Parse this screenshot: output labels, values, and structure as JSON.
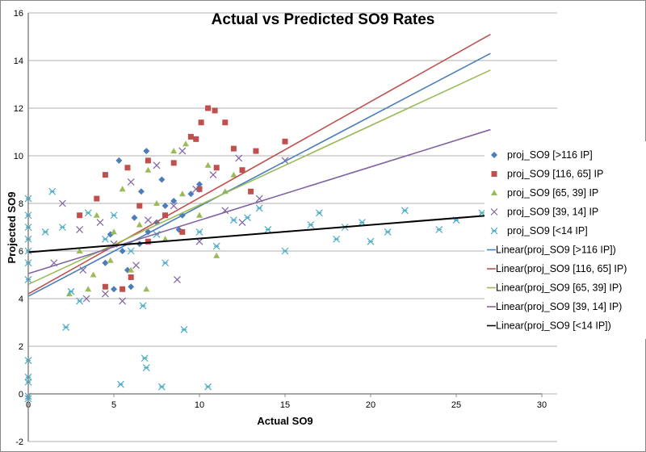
{
  "chart_data": {
    "type": "scatter",
    "title": "Actual vs Predicted SO9 Rates",
    "xlabel": "Actual SO9",
    "ylabel": "Projected SO9",
    "xlim": [
      0,
      30
    ],
    "ylim": [
      -2,
      16
    ],
    "xticks": [
      "0",
      "5",
      "10",
      "15",
      "20",
      "25",
      "30"
    ],
    "yticks": [
      "-2",
      "0",
      "2",
      "4",
      "6",
      "8",
      "10",
      "12",
      "14",
      "16"
    ],
    "grid": "horizontal",
    "legend_position": "right",
    "series": [
      {
        "name": "proj_SO9 [>116 IP]",
        "color": "#4a7ebb",
        "marker": "diamond",
        "points": [
          [
            5.3,
            9.8
          ],
          [
            6.9,
            10.2
          ],
          [
            5,
            4.4
          ],
          [
            6,
            4.5
          ],
          [
            4.5,
            5.5
          ],
          [
            6.5,
            6.3
          ],
          [
            7.5,
            7.2
          ],
          [
            8,
            7.9
          ],
          [
            5.5,
            6
          ],
          [
            7,
            6.8
          ],
          [
            8.5,
            8.1
          ],
          [
            9,
            7.5
          ],
          [
            6.2,
            7.4
          ],
          [
            4.8,
            6.7
          ],
          [
            7.8,
            9
          ],
          [
            9.5,
            8.4
          ],
          [
            10,
            8.8
          ],
          [
            5.8,
            5.2
          ],
          [
            8.8,
            6.9
          ],
          [
            6.6,
            8.5
          ]
        ]
      },
      {
        "name": "proj_SO9 [116, 65] IP",
        "color": "#c0504d",
        "marker": "square",
        "points": [
          [
            10.5,
            12
          ],
          [
            10.9,
            11.9
          ],
          [
            10.1,
            11.4
          ],
          [
            11.5,
            11.4
          ],
          [
            9.8,
            10.7
          ],
          [
            12,
            10.3
          ],
          [
            13.3,
            10.2
          ],
          [
            15,
            10.6
          ],
          [
            4,
            8.2
          ],
          [
            3,
            7.5
          ],
          [
            4.5,
            9.2
          ],
          [
            5.8,
            9.5
          ],
          [
            7,
            9.8
          ],
          [
            8.5,
            9.7
          ],
          [
            4.5,
            4.5
          ],
          [
            6,
            4.9
          ],
          [
            5.5,
            4.4
          ],
          [
            9.5,
            10.8
          ],
          [
            11,
            9.5
          ],
          [
            12.5,
            9.4
          ],
          [
            13,
            8.5
          ],
          [
            8,
            7.5
          ],
          [
            7,
            6.4
          ],
          [
            10,
            8.6
          ],
          [
            6.5,
            7.9
          ],
          [
            9,
            6.8
          ]
        ]
      },
      {
        "name": "proj_SO9 [65, 39] IP",
        "color": "#9bbb59",
        "marker": "triangle",
        "points": [
          [
            2.4,
            4.2
          ],
          [
            3.5,
            4.4
          ],
          [
            6.9,
            4.4
          ],
          [
            9.2,
            10.5
          ],
          [
            8.5,
            10.2
          ],
          [
            7,
            9.4
          ],
          [
            5.5,
            8.6
          ],
          [
            4,
            7.5
          ],
          [
            3,
            6
          ],
          [
            6,
            5.2
          ],
          [
            8,
            6.5
          ],
          [
            10,
            7.5
          ],
          [
            11.5,
            8.5
          ],
          [
            12,
            9.2
          ],
          [
            4.8,
            5.6
          ],
          [
            7.5,
            8
          ],
          [
            9,
            8.4
          ],
          [
            10.5,
            9.6
          ],
          [
            5,
            6.8
          ],
          [
            6.5,
            7.1
          ],
          [
            11,
            5.8
          ],
          [
            3.8,
            5
          ]
        ]
      },
      {
        "name": "proj_SO9 [39, 14] IP",
        "color": "#8064a2",
        "marker": "x",
        "points": [
          [
            2,
            8
          ],
          [
            3.2,
            5.2
          ],
          [
            3.4,
            4
          ],
          [
            4.5,
            4.2
          ],
          [
            5.5,
            3.9
          ],
          [
            8.7,
            4.8
          ],
          [
            10.8,
            9.2
          ],
          [
            12.3,
            9.9
          ],
          [
            13.5,
            8.2
          ],
          [
            15,
            9.8
          ],
          [
            9,
            10.2
          ],
          [
            7.5,
            9.6
          ],
          [
            6,
            8.9
          ],
          [
            4.2,
            7.2
          ],
          [
            1.5,
            5.5
          ],
          [
            5,
            6.3
          ],
          [
            7,
            7.3
          ],
          [
            8.5,
            7.9
          ],
          [
            10,
            6.4
          ],
          [
            11.5,
            7.7
          ],
          [
            3,
            6.9
          ],
          [
            6.3,
            5.4
          ],
          [
            9.8,
            8.6
          ],
          [
            12.5,
            7.2
          ]
        ]
      },
      {
        "name": "proj_SO9 [<14 IP]",
        "color": "#4bacc6",
        "marker": "asterisk",
        "points": [
          [
            0,
            8.2
          ],
          [
            0,
            7.5
          ],
          [
            0,
            7
          ],
          [
            0,
            6.5
          ],
          [
            0,
            6
          ],
          [
            0,
            5.5
          ],
          [
            0,
            4.8
          ],
          [
            0,
            1.4
          ],
          [
            0,
            0.7
          ],
          [
            0,
            0.5
          ],
          [
            0,
            -0.1
          ],
          [
            0,
            -0.2
          ],
          [
            1.4,
            8.5
          ],
          [
            2.2,
            2.8
          ],
          [
            5.4,
            0.4
          ],
          [
            6.8,
            1.5
          ],
          [
            6.9,
            1.1
          ],
          [
            6.7,
            3.7
          ],
          [
            7.8,
            0.3
          ],
          [
            9.1,
            2.7
          ],
          [
            10.5,
            0.3
          ],
          [
            2.5,
            4.3
          ],
          [
            3,
            3.9
          ],
          [
            1,
            6.8
          ],
          [
            2,
            7
          ],
          [
            3.5,
            7.6
          ],
          [
            5,
            7.5
          ],
          [
            6,
            6
          ],
          [
            8,
            5.5
          ],
          [
            10,
            6.8
          ],
          [
            12,
            7.3
          ],
          [
            13.5,
            7.8
          ],
          [
            14,
            6.9
          ],
          [
            15,
            6
          ],
          [
            16.5,
            7.1
          ],
          [
            17,
            7.6
          ],
          [
            18,
            6.5
          ],
          [
            19.5,
            7.2
          ],
          [
            21,
            6.8
          ],
          [
            22,
            7.7
          ],
          [
            24,
            6.9
          ],
          [
            27,
            6.6
          ],
          [
            26.5,
            7.6
          ],
          [
            25,
            7.3
          ],
          [
            20,
            6.4
          ],
          [
            18.5,
            7
          ],
          [
            11,
            6.2
          ],
          [
            12.8,
            7.4
          ],
          [
            4.5,
            6.5
          ],
          [
            7.5,
            6.7
          ]
        ]
      }
    ],
    "trendlines": [
      {
        "name": "Linear(proj_SO9 [>116 IP])",
        "color": "#4a7ebb",
        "x": [
          0,
          27
        ],
        "y": [
          4.1,
          14.3
        ]
      },
      {
        "name": "Linear(proj_SO9 [116, 65] IP)",
        "color": "#c0504d",
        "x": [
          0,
          27
        ],
        "y": [
          4.2,
          15.1
        ]
      },
      {
        "name": "Linear(proj_SO9 [65, 39] IP)",
        "color": "#9bbb59",
        "x": [
          0,
          27
        ],
        "y": [
          4.6,
          13.6
        ]
      },
      {
        "name": "Linear(proj_SO9 [39, 14] IP)",
        "color": "#8064a2",
        "x": [
          0,
          27
        ],
        "y": [
          5.05,
          11.1
        ]
      },
      {
        "name": "Linear(proj_SO9 [<14 IP])",
        "color": "#000000",
        "x": [
          0,
          27
        ],
        "y": [
          5.95,
          7.5
        ]
      }
    ]
  }
}
